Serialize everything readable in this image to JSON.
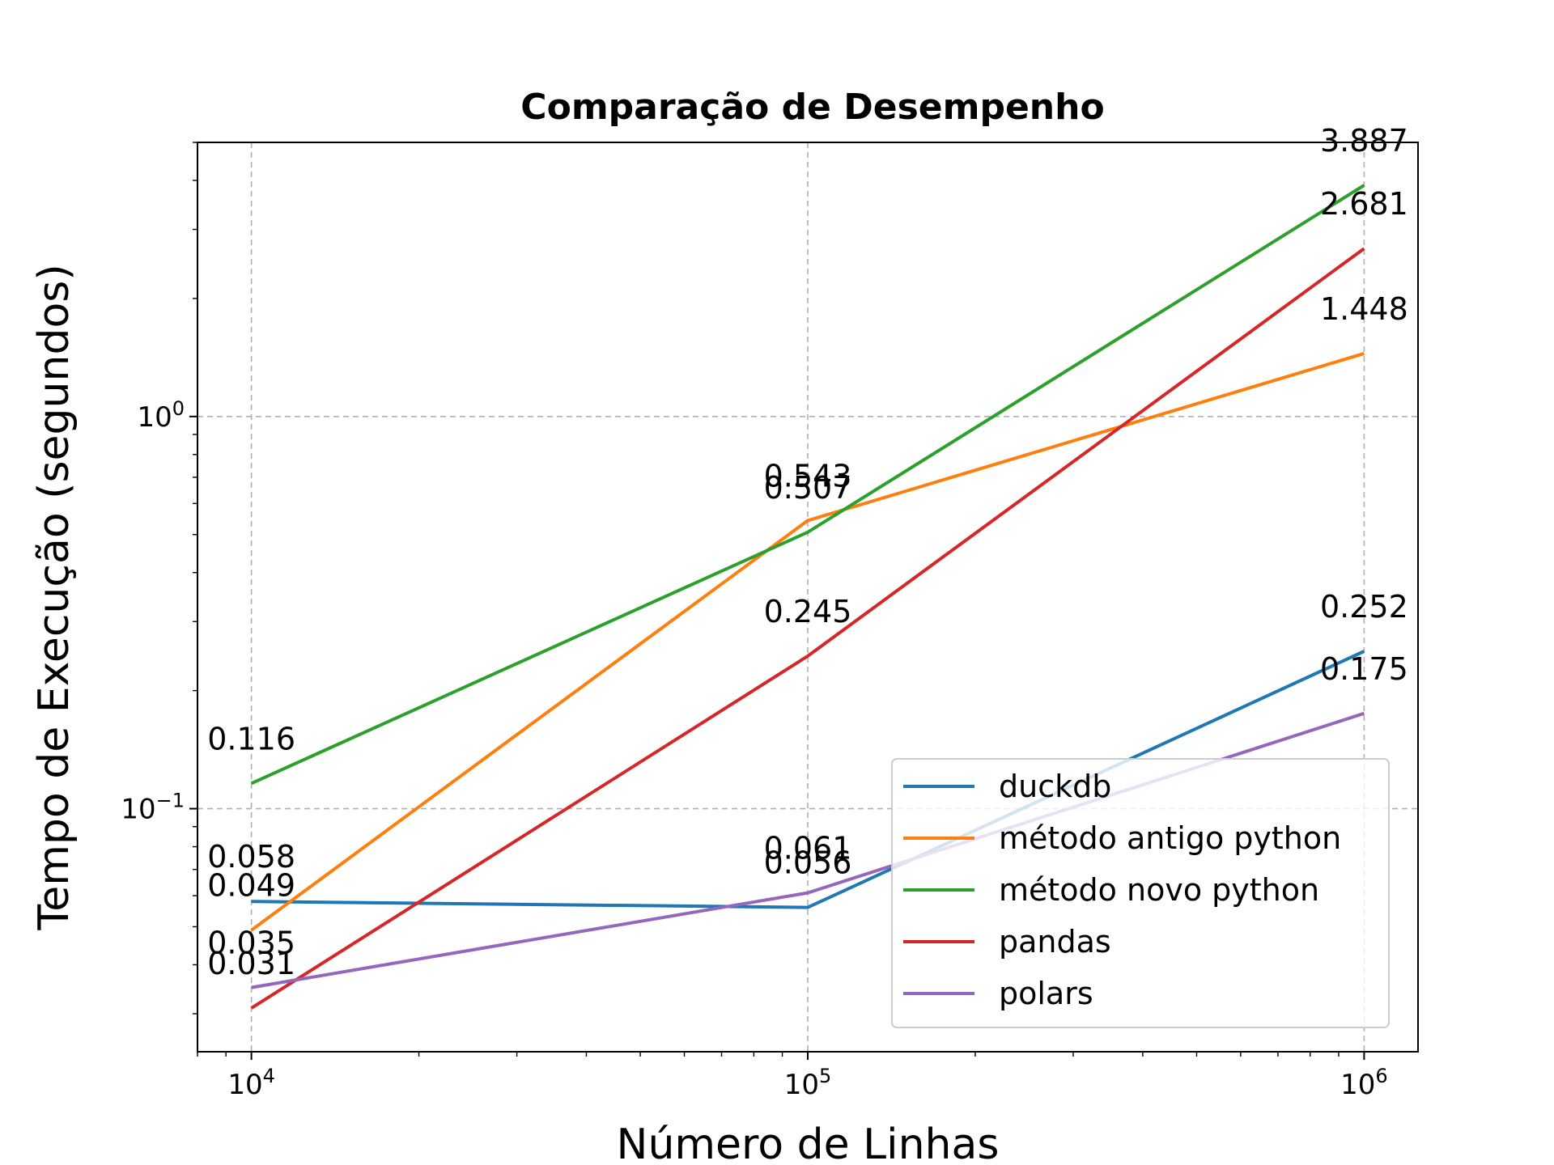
{
  "chart_data": {
    "type": "line",
    "title": "Comparação de Desempenho",
    "xlabel": "Número de Linhas",
    "ylabel": "Tempo de Execução (segundos)",
    "xscale": "log",
    "yscale": "log",
    "grid": true,
    "legend_position": "lower-right",
    "x": [
      10000,
      100000,
      1000000
    ],
    "x_ticks": [
      {
        "value": 10000,
        "base": "10",
        "exp": "4"
      },
      {
        "value": 100000,
        "base": "10",
        "exp": "5"
      },
      {
        "value": 1000000,
        "base": "10",
        "exp": "6"
      }
    ],
    "y_ticks": [
      {
        "value": 0.1,
        "base": "10",
        "exp": "−1"
      },
      {
        "value": 1,
        "base": "10",
        "exp": "0"
      }
    ],
    "xlim": [
      8000,
      1250000
    ],
    "ylim": [
      0.024,
      5.0
    ],
    "series": [
      {
        "name": "duckdb",
        "color": "#1f77b4",
        "values": [
          0.058,
          0.056,
          0.252
        ],
        "labels": [
          "0.058",
          "0.056",
          "0.252"
        ]
      },
      {
        "name": "método antigo python",
        "color": "#ff7f0e",
        "values": [
          0.049,
          0.543,
          1.448
        ],
        "labels": [
          "0.049",
          "0.543",
          "1.448"
        ]
      },
      {
        "name": "método novo python",
        "color": "#2ca02c",
        "values": [
          0.116,
          0.507,
          3.887
        ],
        "labels": [
          "0.116",
          "0.507",
          "3.887"
        ]
      },
      {
        "name": "pandas",
        "color": "#d62728",
        "values": [
          0.031,
          0.245,
          2.681
        ],
        "labels": [
          "0.031",
          "0.245",
          "2.681"
        ]
      },
      {
        "name": "polars",
        "color": "#9467bd",
        "values": [
          0.035,
          0.061,
          0.175
        ],
        "labels": [
          "0.035",
          "0.061",
          "0.175"
        ]
      }
    ]
  }
}
